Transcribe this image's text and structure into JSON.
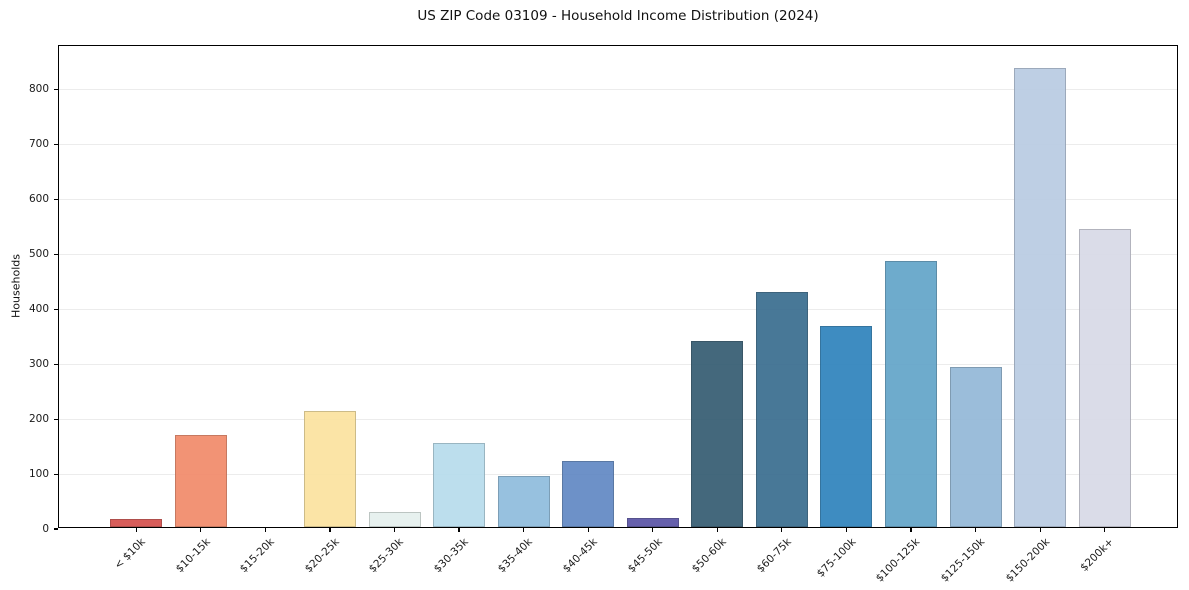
{
  "chart_data": {
    "type": "bar",
    "title": "US ZIP Code 03109 - Household Income Distribution (2024)",
    "xlabel": "",
    "ylabel": "Households",
    "categories": [
      "< $10k",
      "$10-15k",
      "$15-20k",
      "$20-25k",
      "$25-30k",
      "$30-35k",
      "$35-40k",
      "$40-45k",
      "$45-50k",
      "$50-60k",
      "$60-75k",
      "$75-100k",
      "$100-125k",
      "$125-150k",
      "$150-200k",
      "$200k+"
    ],
    "values": [
      14,
      167,
      0,
      212,
      27,
      153,
      93,
      120,
      16,
      338,
      429,
      366,
      484,
      292,
      837,
      543
    ],
    "bar_colors": [
      "#d5514e",
      "#f28b6b",
      "#c9c9c9",
      "#fbe3a0",
      "#e6f1ee",
      "#b7dcec",
      "#90bddd",
      "#6289c4",
      "#5b55a6",
      "#365d73",
      "#3b6e90",
      "#3084bd",
      "#64a5c9",
      "#94b9d8",
      "#bacce3",
      "#d8dae7"
    ],
    "yticks": [
      0,
      100,
      200,
      300,
      400,
      500,
      600,
      700,
      800
    ],
    "ylim": [
      0,
      880
    ],
    "x_tick_rotation_deg": 45,
    "grid": "horizontal",
    "legend": "none",
    "background_color": "#ffffff",
    "gridline_color": "#ececec",
    "spine_color": "#000000"
  }
}
